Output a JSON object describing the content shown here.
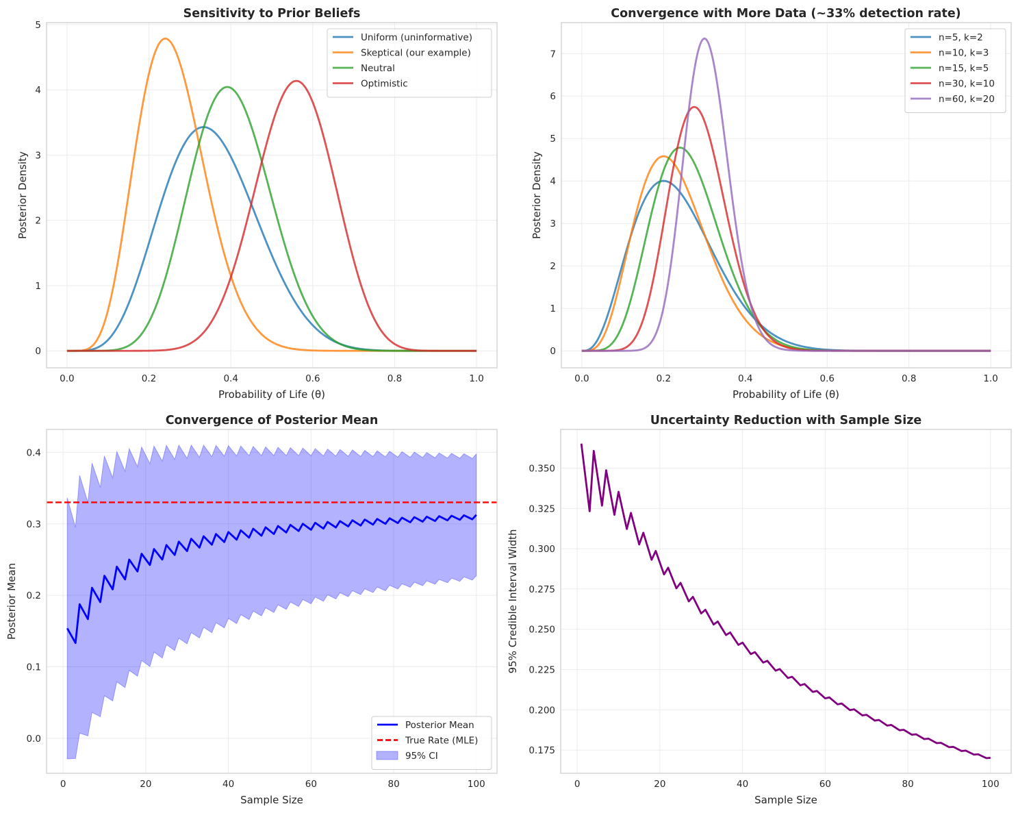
{
  "figure": {
    "panels": 4
  },
  "chart_data": [
    {
      "type": "line",
      "id": "prior-sensitivity",
      "title": "Sensitivity to Prior Beliefs",
      "xlabel": "Probability of Life (θ)",
      "ylabel": "Posterior Density",
      "xlim": [
        -0.05,
        1.05
      ],
      "ylim": [
        -0.26,
        5.03
      ],
      "xticks": [
        0.0,
        0.2,
        0.4,
        0.6,
        0.8,
        1.0
      ],
      "xtick_labels": [
        "0.0",
        "0.2",
        "0.4",
        "0.6",
        "0.8",
        "1.0"
      ],
      "yticks": [
        0,
        1,
        2,
        3,
        4,
        5
      ],
      "ytick_labels": [
        "0",
        "1",
        "2",
        "3",
        "4",
        "5"
      ],
      "grid": true,
      "legend_position": "top-right",
      "curve": "beta-pdf",
      "x_domain": [
        0,
        1
      ],
      "series": [
        {
          "name": "Uniform (uninformative)",
          "color": "#1f77b4",
          "alpha": 6,
          "beta": 11,
          "peak_x": 0.33,
          "peak_y": 3.43
        },
        {
          "name": "Skeptical (our example)",
          "color": "#ff7f0e",
          "alpha": 7,
          "beta": 20,
          "peak_x": 0.24,
          "peak_y": 4.78
        },
        {
          "name": "Neutral",
          "color": "#2ca02c",
          "alpha": 10,
          "beta": 15,
          "peak_x": 0.39,
          "peak_y": 4.05
        },
        {
          "name": "Optimistic",
          "color": "#d62728",
          "alpha": 15,
          "beta": 12,
          "peak_x": 0.56,
          "peak_y": 4.14
        }
      ]
    },
    {
      "type": "line",
      "id": "convergence-more-data",
      "title": "Convergence with More Data (~33% detection rate)",
      "xlabel": "Probability of Life (θ)",
      "ylabel": "Posterior Density",
      "xlim": [
        -0.05,
        1.05
      ],
      "ylim": [
        -0.4,
        7.73
      ],
      "xticks": [
        0.0,
        0.2,
        0.4,
        0.6,
        0.8,
        1.0
      ],
      "xtick_labels": [
        "0.0",
        "0.2",
        "0.4",
        "0.6",
        "0.8",
        "1.0"
      ],
      "yticks": [
        0,
        1,
        2,
        3,
        4,
        5,
        6,
        7
      ],
      "ytick_labels": [
        "0",
        "1",
        "2",
        "3",
        "4",
        "5",
        "6",
        "7"
      ],
      "grid": true,
      "legend_position": "top-right",
      "curve": "beta-pdf",
      "x_domain": [
        0,
        1
      ],
      "series": [
        {
          "name": "n=5, k=2",
          "color": "#1f77b4",
          "alpha": 4,
          "beta": 13,
          "peak_x": 0.2,
          "peak_y": 4.0
        },
        {
          "name": "n=10, k=3",
          "color": "#ff7f0e",
          "alpha": 5,
          "beta": 17,
          "peak_x": 0.2,
          "peak_y": 4.57
        },
        {
          "name": "n=15, k=5",
          "color": "#2ca02c",
          "alpha": 7,
          "beta": 20,
          "peak_x": 0.24,
          "peak_y": 4.78
        },
        {
          "name": "n=30, k=10",
          "color": "#d62728",
          "alpha": 12,
          "beta": 30,
          "peak_x": 0.275,
          "peak_y": 5.75
        },
        {
          "name": "n=60, k=20",
          "color": "#9467bd",
          "alpha": 22,
          "beta": 50,
          "peak_x": 0.3,
          "peak_y": 7.36
        }
      ]
    },
    {
      "type": "line",
      "id": "posterior-mean-convergence",
      "title": "Convergence of Posterior Mean",
      "xlabel": "Sample Size",
      "ylabel": "Posterior Mean",
      "xlim": [
        -4,
        105
      ],
      "ylim": [
        -0.049,
        0.432
      ],
      "xticks": [
        0,
        20,
        40,
        60,
        80,
        100
      ],
      "xtick_labels": [
        "0",
        "20",
        "40",
        "60",
        "80",
        "100"
      ],
      "yticks": [
        0.0,
        0.1,
        0.2,
        0.3,
        0.4
      ],
      "ytick_labels": [
        "0.0",
        "0.1",
        "0.2",
        "0.3",
        "0.4"
      ],
      "grid": true,
      "legend_position": "bottom-right",
      "true_rate": 0.33,
      "x": [
        1,
        3,
        4,
        6,
        7,
        9,
        10,
        12,
        13,
        15,
        16,
        18,
        19,
        21,
        22,
        24,
        25,
        27,
        28,
        30,
        31,
        33,
        34,
        36,
        37,
        39,
        40,
        42,
        43,
        45,
        46,
        48,
        49,
        51,
        52,
        54,
        55,
        57,
        58,
        60,
        61,
        63,
        64,
        66,
        67,
        69,
        70,
        72,
        73,
        75,
        76,
        78,
        79,
        81,
        82,
        84,
        85,
        87,
        88,
        90,
        91,
        93,
        94,
        96,
        97,
        99,
        100
      ],
      "series": [
        {
          "name": "Posterior Mean",
          "color": "#0000ff",
          "style": "solid",
          "values": [
            0.1538,
            0.1333,
            0.1875,
            0.1667,
            0.2105,
            0.1905,
            0.2273,
            0.2083,
            0.24,
            0.2222,
            0.25,
            0.2333,
            0.2581,
            0.2424,
            0.2647,
            0.25,
            0.2703,
            0.2564,
            0.275,
            0.2619,
            0.2791,
            0.2667,
            0.2826,
            0.2708,
            0.2857,
            0.2745,
            0.2885,
            0.2778,
            0.2909,
            0.2807,
            0.2931,
            0.2833,
            0.2951,
            0.2857,
            0.2969,
            0.2879,
            0.2985,
            0.2899,
            0.3,
            0.2917,
            0.3014,
            0.2933,
            0.3026,
            0.2949,
            0.3038,
            0.2963,
            0.3049,
            0.2976,
            0.3059,
            0.2989,
            0.3068,
            0.3,
            0.3077,
            0.3011,
            0.3085,
            0.3021,
            0.3093,
            0.303,
            0.31,
            0.3039,
            0.3107,
            0.3048,
            0.3113,
            0.3056,
            0.3119,
            0.3063,
            0.3125
          ]
        },
        {
          "name": "True Rate (MLE)",
          "color": "#ff0000",
          "style": "dashed",
          "value": 0.33
        },
        {
          "name": "95% CI",
          "color": "#0000ff",
          "style": "band",
          "lower": [
            -0.0288,
            -0.0283,
            0.0072,
            0.0033,
            0.0362,
            0.03,
            0.0596,
            0.0522,
            0.0789,
            0.0709,
            0.095,
            0.0868,
            0.1088,
            0.1004,
            0.1206,
            0.1123,
            0.1309,
            0.1227,
            0.14,
            0.132,
            0.148,
            0.1402,
            0.1552,
            0.1477,
            0.1617,
            0.1544,
            0.1676,
            0.1605,
            0.173,
            0.166,
            0.1779,
            0.1712,
            0.1825,
            0.1759,
            0.1867,
            0.1803,
            0.1905,
            0.1843,
            0.1941,
            0.1881,
            0.1975,
            0.1916,
            0.2007,
            0.195,
            0.2036,
            0.1981,
            0.2064,
            0.201,
            0.2091,
            0.2038,
            0.2115,
            0.2064,
            0.2139,
            0.2089,
            0.2161,
            0.2112,
            0.2183,
            0.2134,
            0.2202,
            0.2155,
            0.2222,
            0.2176,
            0.224,
            0.2195,
            0.2257,
            0.2213,
            0.2274
          ],
          "upper": [
            0.3364,
            0.2949,
            0.3678,
            0.33,
            0.3849,
            0.351,
            0.3949,
            0.3644,
            0.4011,
            0.3735,
            0.405,
            0.3799,
            0.4074,
            0.3844,
            0.4088,
            0.3877,
            0.4097,
            0.3901,
            0.41,
            0.3918,
            0.4101,
            0.3931,
            0.41,
            0.394,
            0.4097,
            0.3947,
            0.4093,
            0.3951,
            0.4088,
            0.3954,
            0.4083,
            0.3955,
            0.4077,
            0.3955,
            0.4071,
            0.3955,
            0.4065,
            0.3954,
            0.4059,
            0.3952,
            0.4052,
            0.395,
            0.4046,
            0.3948,
            0.404,
            0.3945,
            0.4034,
            0.3942,
            0.4027,
            0.394,
            0.4021,
            0.3936,
            0.4015,
            0.3933,
            0.4009,
            0.393,
            0.4003,
            0.3927,
            0.3998,
            0.3923,
            0.3992,
            0.392,
            0.3986,
            0.3917,
            0.3981,
            0.3913,
            0.3976
          ]
        }
      ]
    },
    {
      "type": "line",
      "id": "uncertainty-reduction",
      "title": "Uncertainty Reduction with Sample Size",
      "xlabel": "Sample Size",
      "ylabel": "95% Credible Interval Width",
      "xlim": [
        -4,
        105
      ],
      "ylim": [
        0.1606,
        0.374
      ],
      "xticks": [
        0,
        20,
        40,
        60,
        80,
        100
      ],
      "xtick_labels": [
        "0",
        "20",
        "40",
        "60",
        "80",
        "100"
      ],
      "yticks": [
        0.175,
        0.2,
        0.225,
        0.25,
        0.275,
        0.3,
        0.325,
        0.35
      ],
      "ytick_labels": [
        "0.175",
        "0.200",
        "0.225",
        "0.250",
        "0.275",
        "0.300",
        "0.325",
        "0.350"
      ],
      "grid": true,
      "x": [
        1,
        3,
        4,
        6,
        7,
        9,
        10,
        12,
        13,
        15,
        16,
        18,
        19,
        21,
        22,
        24,
        25,
        27,
        28,
        30,
        31,
        33,
        34,
        36,
        37,
        39,
        40,
        42,
        43,
        45,
        46,
        48,
        49,
        51,
        52,
        54,
        55,
        57,
        58,
        60,
        61,
        63,
        64,
        66,
        67,
        69,
        70,
        72,
        73,
        75,
        76,
        78,
        79,
        81,
        82,
        84,
        85,
        87,
        88,
        90,
        91,
        93,
        94,
        96,
        97,
        99,
        100
      ],
      "series": [
        {
          "name": "CI Width",
          "color": "#800080",
          "values": [
            0.3652,
            0.3232,
            0.3607,
            0.3267,
            0.3487,
            0.321,
            0.3353,
            0.3122,
            0.3222,
            0.3026,
            0.3099,
            0.2931,
            0.2986,
            0.284,
            0.2882,
            0.2754,
            0.2788,
            0.2673,
            0.2701,
            0.2598,
            0.2621,
            0.2529,
            0.2548,
            0.2464,
            0.248,
            0.2403,
            0.2417,
            0.2346,
            0.2358,
            0.2293,
            0.2304,
            0.2243,
            0.2253,
            0.2197,
            0.2205,
            0.2152,
            0.216,
            0.2111,
            0.2117,
            0.2071,
            0.2077,
            0.2034,
            0.2039,
            0.1998,
            0.2003,
            0.1965,
            0.1969,
            0.1933,
            0.1937,
            0.1902,
            0.1906,
            0.1873,
            0.1876,
            0.1845,
            0.1848,
            0.1818,
            0.1821,
            0.1793,
            0.1795,
            0.1768,
            0.177,
            0.1744,
            0.1747,
            0.1722,
            0.1724,
            0.17,
            0.1702
          ]
        }
      ]
    }
  ]
}
